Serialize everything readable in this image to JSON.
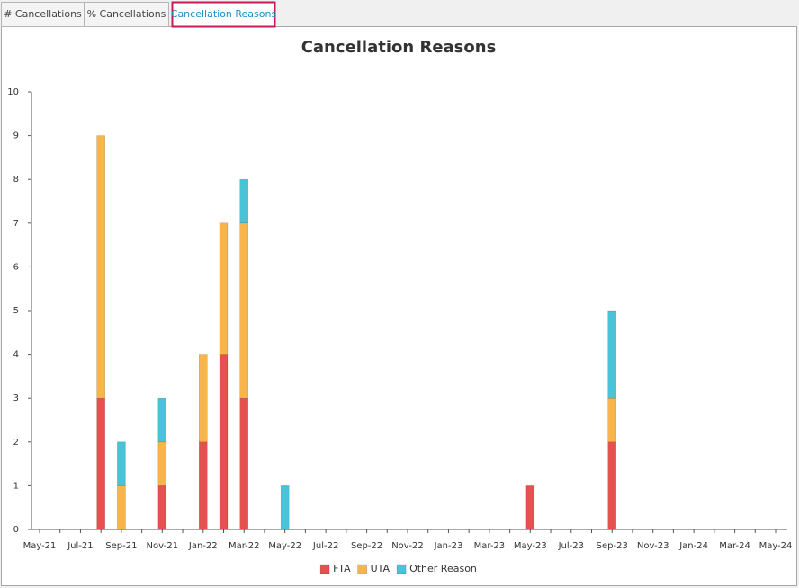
{
  "tabs": [
    "# Cancellations",
    "% Cancellations",
    "Cancellation Reasons"
  ],
  "active_tab": 2,
  "chart_data": {
    "type": "stacked_bar",
    "title": "Cancellation Reasons",
    "categories": [
      "May-21",
      null,
      "Jul-21",
      null,
      "Sep-21",
      null,
      "Nov-21",
      null,
      "Jan-22",
      null,
      "Mar-22",
      null,
      "May-22",
      null,
      "Jul-22",
      null,
      "Sep-22",
      null,
      "Nov-22",
      null,
      "Jan-23",
      null,
      "Mar-23",
      null,
      "May-23",
      null,
      "Jul-23",
      null,
      "Sep-23",
      null,
      "Nov-23",
      null,
      "Jan-24",
      null,
      "Mar-24",
      null,
      "May-24"
    ],
    "series": [
      {
        "name": "FTA",
        "color": "#e8504f",
        "values": [
          0,
          0,
          0,
          3,
          0,
          0,
          1,
          0,
          2,
          4,
          3,
          0,
          0,
          0,
          0,
          0,
          0,
          0,
          0,
          0,
          0,
          0,
          0,
          0,
          1,
          0,
          0,
          0,
          2,
          0,
          0,
          0,
          0,
          0,
          0,
          0,
          0
        ]
      },
      {
        "name": "UTA",
        "color": "#f8b54a",
        "values": [
          0,
          0,
          0,
          6,
          1,
          0,
          1,
          0,
          2,
          3,
          4,
          0,
          0,
          0,
          0,
          0,
          0,
          0,
          0,
          0,
          0,
          0,
          0,
          0,
          0,
          0,
          0,
          0,
          1,
          0,
          0,
          0,
          0,
          0,
          0,
          0,
          0
        ]
      },
      {
        "name": "Other Reason",
        "color": "#48c3d8",
        "values": [
          0,
          0,
          0,
          0,
          1,
          0,
          1,
          0,
          0,
          0,
          1,
          0,
          1,
          0,
          0,
          0,
          0,
          0,
          0,
          0,
          0,
          0,
          0,
          0,
          0,
          0,
          0,
          0,
          2,
          0,
          0,
          0,
          0,
          0,
          0,
          0,
          0
        ]
      }
    ],
    "ylim": [
      0,
      10
    ],
    "yticks": [
      0,
      1,
      2,
      3,
      4,
      5,
      6,
      7,
      8,
      9,
      10
    ],
    "legend": "bottom"
  }
}
